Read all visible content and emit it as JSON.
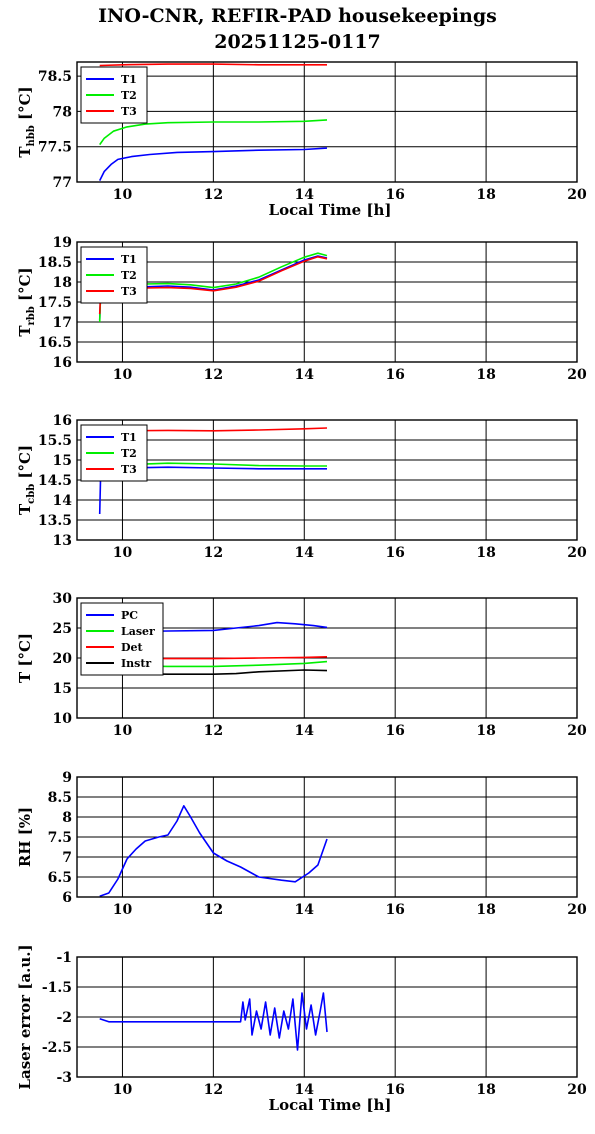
{
  "figure": {
    "title_line1": "INO-CNR, REFIR-PAD housekeepings",
    "title_line2": "20251125-0117"
  },
  "chart_data": [
    {
      "type": "line",
      "ylabel_main": "T",
      "ylabel_sub": "hbb",
      "ylabel_unit": " [°C]",
      "xlabel": "Local Time [h]",
      "xlim": [
        9,
        20
      ],
      "ylim": [
        77,
        78.7
      ],
      "xticks": [
        "10",
        "12",
        "14",
        "16",
        "18",
        "20"
      ],
      "yticks": [
        77,
        77.5,
        78,
        78.5
      ],
      "ytick_labels": [
        "77",
        "77.5",
        "78",
        "78.5"
      ],
      "grid": true,
      "legend": "top-left",
      "series": [
        {
          "name": "T1",
          "color": "#0000ff",
          "points": [
            [
              9.5,
              77.02
            ],
            [
              9.6,
              77.15
            ],
            [
              9.75,
              77.25
            ],
            [
              9.9,
              77.32
            ],
            [
              10.2,
              77.36
            ],
            [
              10.6,
              77.39
            ],
            [
              11.2,
              77.42
            ],
            [
              12,
              77.43
            ],
            [
              13,
              77.45
            ],
            [
              14,
              77.46
            ],
            [
              14.5,
              77.48
            ]
          ]
        },
        {
          "name": "T2",
          "color": "#00ee00",
          "points": [
            [
              9.5,
              77.53
            ],
            [
              9.6,
              77.62
            ],
            [
              9.8,
              77.72
            ],
            [
              10.1,
              77.78
            ],
            [
              10.5,
              77.82
            ],
            [
              11,
              77.84
            ],
            [
              12,
              77.85
            ],
            [
              13,
              77.85
            ],
            [
              14,
              77.86
            ],
            [
              14.5,
              77.88
            ]
          ]
        },
        {
          "name": "T3",
          "color": "#ff0000",
          "points": [
            [
              9.5,
              78.65
            ],
            [
              10,
              78.66
            ],
            [
              11,
              78.67
            ],
            [
              12,
              78.67
            ],
            [
              13,
              78.66
            ],
            [
              14,
              78.66
            ],
            [
              14.5,
              78.66
            ]
          ]
        }
      ]
    },
    {
      "type": "line",
      "ylabel_main": "T",
      "ylabel_sub": "rbb",
      "ylabel_unit": " [°C]",
      "xlabel": "",
      "xlim": [
        9,
        20
      ],
      "ylim": [
        16,
        19
      ],
      "xticks": [
        "10",
        "12",
        "14",
        "16",
        "18",
        "20"
      ],
      "yticks": [
        16,
        16.5,
        17,
        17.5,
        18,
        18.5,
        19
      ],
      "ytick_labels": [
        "16",
        "16.5",
        "17",
        "17.5",
        "18",
        "18.5",
        "19"
      ],
      "grid": true,
      "legend": "top-left",
      "series": [
        {
          "name": "T1",
          "color": "#0000ff",
          "points": [
            [
              9.5,
              17.05
            ],
            [
              9.52,
              17.7
            ],
            [
              9.6,
              17.85
            ],
            [
              10,
              17.85
            ],
            [
              10.5,
              17.88
            ],
            [
              11,
              17.9
            ],
            [
              11.5,
              17.87
            ],
            [
              12,
              17.8
            ],
            [
              12.5,
              17.9
            ],
            [
              13,
              18.05
            ],
            [
              13.5,
              18.3
            ],
            [
              14,
              18.55
            ],
            [
              14.3,
              18.65
            ],
            [
              14.5,
              18.6
            ]
          ]
        },
        {
          "name": "T2",
          "color": "#00ee00",
          "points": [
            [
              9.5,
              17.0
            ],
            [
              9.52,
              17.7
            ],
            [
              9.6,
              17.9
            ],
            [
              10,
              17.92
            ],
            [
              10.5,
              17.95
            ],
            [
              11,
              17.96
            ],
            [
              11.5,
              17.93
            ],
            [
              12,
              17.86
            ],
            [
              12.5,
              17.95
            ],
            [
              13,
              18.12
            ],
            [
              13.5,
              18.38
            ],
            [
              14,
              18.62
            ],
            [
              14.3,
              18.72
            ],
            [
              14.5,
              18.66
            ]
          ]
        },
        {
          "name": "T3",
          "color": "#ff0000",
          "points": [
            [
              9.5,
              17.2
            ],
            [
              9.52,
              17.7
            ],
            [
              9.6,
              17.82
            ],
            [
              10,
              17.83
            ],
            [
              10.5,
              17.85
            ],
            [
              11,
              17.86
            ],
            [
              11.5,
              17.84
            ],
            [
              12,
              17.78
            ],
            [
              12.5,
              17.87
            ],
            [
              13,
              18.02
            ],
            [
              13.5,
              18.28
            ],
            [
              14,
              18.52
            ],
            [
              14.3,
              18.63
            ],
            [
              14.5,
              18.58
            ]
          ]
        }
      ]
    },
    {
      "type": "line",
      "ylabel_main": "T",
      "ylabel_sub": "cbb",
      "ylabel_unit": " [°C]",
      "xlabel": "",
      "xlim": [
        9,
        20
      ],
      "ylim": [
        13,
        16
      ],
      "xticks": [
        "10",
        "12",
        "14",
        "16",
        "18",
        "20"
      ],
      "yticks": [
        13,
        13.5,
        14,
        14.5,
        15,
        15.5,
        16
      ],
      "ytick_labels": [
        "13",
        "13.5",
        "14",
        "14.5",
        "15",
        "15.5",
        "16"
      ],
      "grid": true,
      "legend": "top-left",
      "series": [
        {
          "name": "T1",
          "color": "#0000ff",
          "points": [
            [
              9.5,
              13.65
            ],
            [
              9.52,
              14.6
            ],
            [
              9.6,
              14.75
            ],
            [
              10,
              14.8
            ],
            [
              11,
              14.82
            ],
            [
              12,
              14.8
            ],
            [
              13,
              14.78
            ],
            [
              14,
              14.78
            ],
            [
              14.5,
              14.78
            ]
          ]
        },
        {
          "name": "T2",
          "color": "#00ee00",
          "points": [
            [
              9.5,
              14.7
            ],
            [
              9.55,
              14.85
            ],
            [
              10,
              14.88
            ],
            [
              11,
              14.92
            ],
            [
              12,
              14.9
            ],
            [
              13,
              14.86
            ],
            [
              14,
              14.85
            ],
            [
              14.5,
              14.85
            ]
          ]
        },
        {
          "name": "T3",
          "color": "#ff0000",
          "points": [
            [
              9.5,
              15.7
            ],
            [
              10,
              15.73
            ],
            [
              11,
              15.74
            ],
            [
              12,
              15.73
            ],
            [
              13,
              15.75
            ],
            [
              14,
              15.78
            ],
            [
              14.5,
              15.8
            ]
          ]
        }
      ]
    },
    {
      "type": "line",
      "ylabel_main": "T",
      "ylabel_sub": "",
      "ylabel_unit": " [°C]",
      "xlabel": "",
      "xlim": [
        9,
        20
      ],
      "ylim": [
        10,
        30
      ],
      "xticks": [
        "10",
        "12",
        "14",
        "16",
        "18",
        "20"
      ],
      "yticks": [
        10,
        15,
        20,
        25,
        30
      ],
      "ytick_labels": [
        "10",
        "15",
        "20",
        "25",
        "30"
      ],
      "grid": true,
      "legend": "top-left",
      "series": [
        {
          "name": "PC",
          "color": "#0000ff",
          "points": [
            [
              9.5,
              24.2
            ],
            [
              10,
              24.4
            ],
            [
              11,
              24.5
            ],
            [
              12,
              24.6
            ],
            [
              12.5,
              25.0
            ],
            [
              13,
              25.4
            ],
            [
              13.4,
              25.9
            ],
            [
              13.8,
              25.7
            ],
            [
              14.2,
              25.4
            ],
            [
              14.5,
              25.1
            ]
          ]
        },
        {
          "name": "Laser",
          "color": "#00ee00",
          "points": [
            [
              9.5,
              18.9
            ],
            [
              10,
              18.7
            ],
            [
              11,
              18.6
            ],
            [
              12,
              18.6
            ],
            [
              13,
              18.8
            ],
            [
              14,
              19.1
            ],
            [
              14.5,
              19.4
            ]
          ]
        },
        {
          "name": "Det",
          "color": "#ff0000",
          "points": [
            [
              9.5,
              19.8
            ],
            [
              10,
              19.9
            ],
            [
              11,
              19.9
            ],
            [
              12,
              19.9
            ],
            [
              13,
              20.0
            ],
            [
              14,
              20.1
            ],
            [
              14.5,
              20.2
            ]
          ]
        },
        {
          "name": "Instr",
          "color": "#000000",
          "points": [
            [
              9.5,
              17.6
            ],
            [
              10,
              17.4
            ],
            [
              11,
              17.3
            ],
            [
              12,
              17.3
            ],
            [
              12.5,
              17.4
            ],
            [
              13,
              17.7
            ],
            [
              14,
              18.0
            ],
            [
              14.5,
              17.9
            ]
          ]
        }
      ]
    },
    {
      "type": "line",
      "ylabel_main": "RH [%]",
      "ylabel_sub": "",
      "ylabel_unit": "",
      "xlabel": "",
      "xlim": [
        9,
        20
      ],
      "ylim": [
        6,
        9
      ],
      "xticks": [
        "10",
        "12",
        "14",
        "16",
        "18",
        "20"
      ],
      "yticks": [
        6,
        6.5,
        7,
        7.5,
        8,
        8.5,
        9
      ],
      "ytick_labels": [
        "6",
        "6.5",
        "7",
        "7.5",
        "8",
        "8.5",
        "9"
      ],
      "grid": true,
      "legend": "none",
      "series": [
        {
          "name": "",
          "color": "#0000ff",
          "points": [
            [
              9.5,
              6.02
            ],
            [
              9.7,
              6.1
            ],
            [
              9.9,
              6.45
            ],
            [
              10.1,
              6.95
            ],
            [
              10.3,
              7.2
            ],
            [
              10.5,
              7.4
            ],
            [
              10.8,
              7.5
            ],
            [
              11.0,
              7.55
            ],
            [
              11.2,
              7.9
            ],
            [
              11.35,
              8.28
            ],
            [
              11.5,
              8.0
            ],
            [
              11.7,
              7.6
            ],
            [
              12.0,
              7.1
            ],
            [
              12.3,
              6.9
            ],
            [
              12.6,
              6.75
            ],
            [
              13.0,
              6.5
            ],
            [
              13.5,
              6.42
            ],
            [
              13.8,
              6.38
            ],
            [
              14.1,
              6.6
            ],
            [
              14.3,
              6.8
            ],
            [
              14.5,
              7.45
            ]
          ]
        }
      ]
    },
    {
      "type": "line",
      "ylabel_main": "Laser error [a.u.]",
      "ylabel_sub": "",
      "ylabel_unit": "",
      "xlabel": "Local Time [h]",
      "xlim": [
        9,
        20
      ],
      "ylim": [
        -3,
        -1
      ],
      "xticks": [
        "10",
        "12",
        "14",
        "16",
        "18",
        "20"
      ],
      "yticks": [
        -3,
        -2.5,
        -2,
        -1.5,
        -1
      ],
      "ytick_labels": [
        "-3",
        "-2.5",
        "-2",
        "-1.5",
        "-1"
      ],
      "grid": true,
      "legend": "none",
      "series": [
        {
          "name": "",
          "color": "#0000ff",
          "points": [
            [
              9.5,
              -2.03
            ],
            [
              9.7,
              -2.08
            ],
            [
              10,
              -2.08
            ],
            [
              11,
              -2.08
            ],
            [
              12,
              -2.08
            ],
            [
              12.6,
              -2.08
            ],
            [
              12.65,
              -1.75
            ],
            [
              12.7,
              -2.05
            ],
            [
              12.8,
              -1.7
            ],
            [
              12.85,
              -2.3
            ],
            [
              12.95,
              -1.9
            ],
            [
              13.05,
              -2.2
            ],
            [
              13.15,
              -1.75
            ],
            [
              13.25,
              -2.3
            ],
            [
              13.35,
              -1.85
            ],
            [
              13.45,
              -2.35
            ],
            [
              13.55,
              -1.9
            ],
            [
              13.65,
              -2.2
            ],
            [
              13.75,
              -1.7
            ],
            [
              13.85,
              -2.55
            ],
            [
              13.95,
              -1.6
            ],
            [
              14.05,
              -2.2
            ],
            [
              14.15,
              -1.8
            ],
            [
              14.25,
              -2.3
            ],
            [
              14.35,
              -1.9
            ],
            [
              14.42,
              -1.6
            ],
            [
              14.5,
              -2.25
            ]
          ]
        }
      ]
    }
  ]
}
